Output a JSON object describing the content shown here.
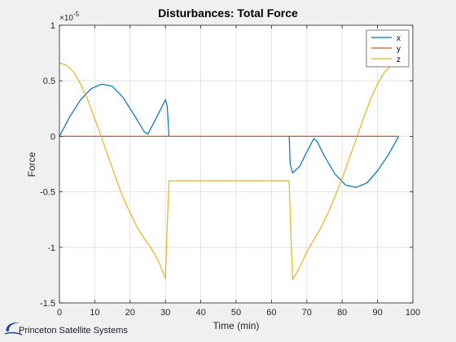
{
  "brand": {
    "text": "Princeton Satellite Systems",
    "color": "#1f3f8f"
  },
  "chart_data": {
    "type": "line",
    "title": "Disturbances: Total Force",
    "xlabel": "Time (min)",
    "ylabel": "Force",
    "y_exponent_label": "×10",
    "y_exponent_power": "-5",
    "xlim": [
      0,
      100
    ],
    "ylim": [
      -1.5,
      1
    ],
    "xticks": [
      0,
      10,
      20,
      30,
      40,
      50,
      60,
      70,
      80,
      90,
      100
    ],
    "yticks": [
      -1.5,
      -1,
      -0.5,
      0,
      0.5,
      1
    ],
    "ytick_labels": [
      "-1.5",
      "-1",
      "-0.5",
      "0",
      "0.5",
      "1"
    ],
    "grid": true,
    "legend_position": "top-right",
    "series": [
      {
        "name": "x",
        "color": "#0072bd",
        "x": [
          0,
          3,
          6,
          9,
          12,
          15,
          18,
          21,
          24,
          25,
          27,
          30,
          30.5,
          31,
          null,
          65,
          65.3,
          66,
          68,
          70,
          72,
          73,
          75,
          78,
          81,
          84,
          87,
          90,
          93,
          96
        ],
        "y": [
          0,
          0.18,
          0.33,
          0.43,
          0.47,
          0.45,
          0.35,
          0.2,
          0.04,
          0.02,
          0.14,
          0.33,
          0.27,
          0,
          null,
          0,
          -0.25,
          -0.33,
          -0.27,
          -0.14,
          -0.02,
          -0.05,
          -0.18,
          -0.34,
          -0.44,
          -0.46,
          -0.42,
          -0.31,
          -0.17,
          0
        ]
      },
      {
        "name": "y",
        "color": "#d95319",
        "x": [
          0,
          96
        ],
        "y": [
          0,
          0
        ]
      },
      {
        "name": "z",
        "color": "#edb120",
        "x": [
          0,
          2,
          4,
          6,
          8,
          10,
          12,
          14,
          16,
          18,
          20,
          22,
          24,
          26,
          28,
          30,
          30.5,
          31,
          65,
          65.5,
          66,
          68,
          70,
          72,
          74,
          76,
          78,
          80,
          82,
          84,
          86,
          88,
          90,
          92,
          94,
          96
        ],
        "y": [
          0.66,
          0.64,
          0.58,
          0.47,
          0.33,
          0.16,
          -0.02,
          -0.2,
          -0.38,
          -0.55,
          -0.69,
          -0.82,
          -0.92,
          -1.01,
          -1.12,
          -1.28,
          -0.8,
          -0.4,
          -0.4,
          -0.9,
          -1.29,
          -1.18,
          -1.04,
          -0.93,
          -0.82,
          -0.69,
          -0.54,
          -0.38,
          -0.2,
          -0.02,
          0.16,
          0.33,
          0.47,
          0.58,
          0.64,
          0.66
        ]
      }
    ]
  }
}
